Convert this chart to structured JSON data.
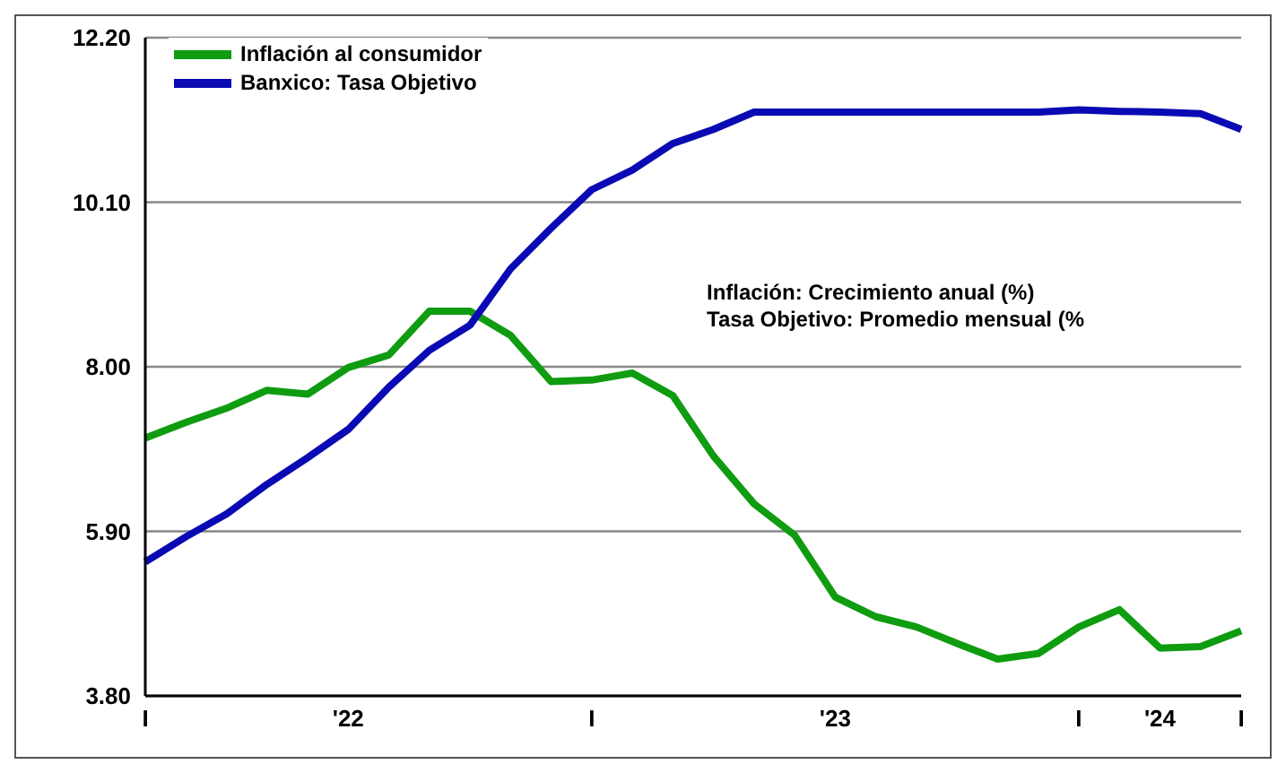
{
  "chart_data": {
    "type": "line",
    "categories": [
      "I",
      null,
      null,
      null,
      null,
      "'22",
      null,
      null,
      null,
      null,
      null,
      "I",
      null,
      null,
      null,
      null,
      null,
      "'23",
      null,
      null,
      null,
      null,
      null,
      "I",
      null,
      "'24",
      null,
      "I"
    ],
    "series": [
      {
        "name": "Inflación al consumidor",
        "color": "#109c10",
        "values": [
          7.09,
          7.29,
          7.47,
          7.7,
          7.65,
          7.99,
          8.15,
          8.71,
          8.71,
          8.4,
          7.81,
          7.83,
          7.92,
          7.63,
          6.86,
          6.25,
          5.85,
          5.06,
          4.81,
          4.68,
          4.47,
          4.27,
          4.34,
          4.68,
          4.9,
          4.41,
          4.43,
          4.63
        ]
      },
      {
        "name": "Banxico: Tasa Objetivo",
        "color": "#0a0ab4",
        "values": [
          5.51,
          5.83,
          6.12,
          6.5,
          6.84,
          7.2,
          7.74,
          8.21,
          8.53,
          9.25,
          9.77,
          10.26,
          10.51,
          10.85,
          11.03,
          11.25,
          11.25,
          11.25,
          11.25,
          11.25,
          11.25,
          11.25,
          11.25,
          11.28,
          11.26,
          11.25,
          11.23,
          11.03
        ]
      }
    ],
    "ylim": [
      3.8,
      12.2
    ],
    "yticks": [
      {
        "value": 3.8,
        "label": "3.80"
      },
      {
        "value": 5.9,
        "label": "5.90"
      },
      {
        "value": 8,
        "label": "8.00"
      },
      {
        "value": 10.1,
        "label": "10.10"
      },
      {
        "value": 12.2,
        "label": "12.20"
      }
    ],
    "grid": "y",
    "legend": "top left",
    "marker": "none",
    "line_style": "solid",
    "annotations": [
      "Inflación: Crecimiento anual (%)",
      "Tasa Objetivo: Promedio mensual (%"
    ]
  }
}
